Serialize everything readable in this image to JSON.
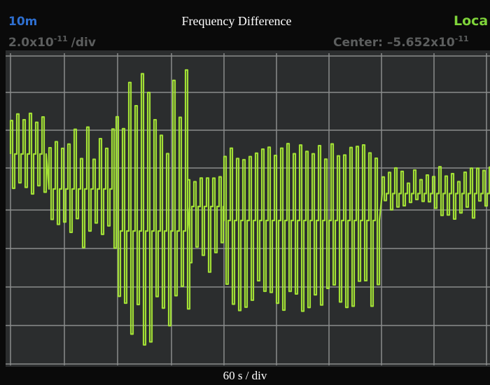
{
  "header": {
    "memory": "10m",
    "title": "Frequency Difference",
    "mode": "Loca",
    "scale": {
      "mantissa": "2.0x10",
      "exponent": "-11",
      "unit": "/div"
    },
    "center": {
      "label": "Center: –5.652x10",
      "exponent": "-11"
    }
  },
  "footer": {
    "timebase": "60 s / div"
  }
}
